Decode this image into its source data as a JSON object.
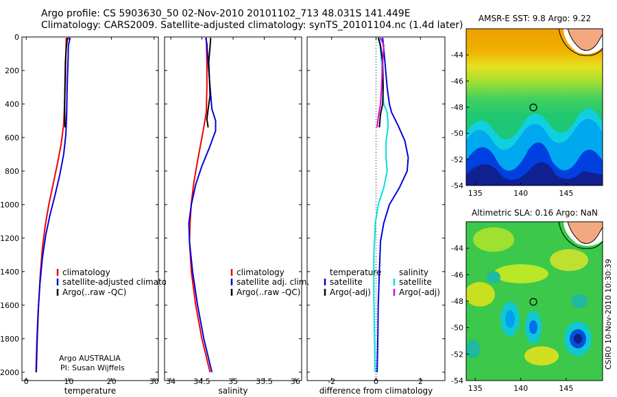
{
  "header": {
    "line1": "Argo profile: CS 5903630_50 02-Nov-2010 20101102_713 48.031S 141.449E",
    "line2": "Climatology: CARS2009. Satellite-adjusted climatology: synTS_20101104.nc (1.4d later)"
  },
  "credits": {
    "org": "Argo AUSTRALIA",
    "pi": "PI: Susan Wijffels"
  },
  "stamp": "CSIRO 10-Nov-2010 10:30:39",
  "chart_data": [
    {
      "type": "line",
      "name": "temperature",
      "xlabel": "temperature",
      "ylabel": "",
      "xlim": [
        -1,
        31
      ],
      "ylim": [
        2050,
        0
      ],
      "xticks": [
        0,
        10,
        20,
        30
      ],
      "yticks": [
        0,
        200,
        400,
        600,
        800,
        1000,
        1200,
        1400,
        1600,
        1800,
        2000
      ],
      "legend": [
        "climatology",
        "satellite-adjusted climatology",
        "Argo(..raw -QC)"
      ],
      "series": [
        {
          "name": "climatology",
          "color": "#ee0000",
          "points": [
            [
              9.4,
              5
            ],
            [
              9.3,
              100
            ],
            [
              9.2,
              250
            ],
            [
              9.0,
              400
            ],
            [
              8.8,
              520
            ],
            [
              8.2,
              640
            ],
            [
              7.3,
              760
            ],
            [
              6.3,
              880
            ],
            [
              5.3,
              1000
            ],
            [
              4.5,
              1120
            ],
            [
              3.8,
              1260
            ],
            [
              3.3,
              1420
            ],
            [
              2.9,
              1600
            ],
            [
              2.6,
              1800
            ],
            [
              2.4,
              2000
            ]
          ]
        },
        {
          "name": "satellite-adjusted climatology",
          "color": "#0000dd",
          "points": [
            [
              10.3,
              5
            ],
            [
              9.9,
              50
            ],
            [
              9.8,
              150
            ],
            [
              9.6,
              300
            ],
            [
              9.5,
              450
            ],
            [
              9.3,
              580
            ],
            [
              8.8,
              700
            ],
            [
              7.9,
              820
            ],
            [
              6.8,
              940
            ],
            [
              5.6,
              1060
            ],
            [
              4.6,
              1180
            ],
            [
              3.8,
              1320
            ],
            [
              3.2,
              1480
            ],
            [
              2.8,
              1640
            ],
            [
              2.5,
              1820
            ],
            [
              2.3,
              2000
            ]
          ]
        },
        {
          "name": "Argo(..raw -QC)",
          "color": "#000000",
          "points": [
            [
              9.7,
              5
            ],
            [
              9.4,
              60
            ],
            [
              9.2,
              150
            ],
            [
              9.1,
              280
            ],
            [
              9.0,
              400
            ],
            [
              9.05,
              480
            ],
            [
              9.1,
              540
            ]
          ]
        }
      ]
    },
    {
      "type": "line",
      "name": "salinity",
      "xlabel": "salinity",
      "ylabel": "",
      "xlim": [
        33.9,
        36.1
      ],
      "ylim": [
        2050,
        0
      ],
      "xticks": [
        34,
        34.5,
        35,
        35.5,
        36
      ],
      "yticks": [
        0,
        200,
        400,
        600,
        800,
        1000,
        1200,
        1400,
        1600,
        1800,
        2000
      ],
      "legend": [
        "climatology",
        "satellite adj. clim.",
        "Argo(..raw -QC)"
      ],
      "series": [
        {
          "name": "climatology",
          "color": "#ee0000",
          "points": [
            [
              34.57,
              5
            ],
            [
              34.58,
              150
            ],
            [
              34.58,
              300
            ],
            [
              34.57,
              450
            ],
            [
              34.52,
              560
            ],
            [
              34.47,
              660
            ],
            [
              34.42,
              760
            ],
            [
              34.37,
              870
            ],
            [
              34.33,
              990
            ],
            [
              34.31,
              1110
            ],
            [
              34.3,
              1220
            ],
            [
              34.33,
              1400
            ],
            [
              34.4,
              1600
            ],
            [
              34.5,
              1800
            ],
            [
              34.63,
              2000
            ]
          ]
        },
        {
          "name": "satellite adj. clim.",
          "color": "#0000dd",
          "points": [
            [
              34.56,
              5
            ],
            [
              34.58,
              40
            ],
            [
              34.6,
              150
            ],
            [
              34.63,
              300
            ],
            [
              34.66,
              430
            ],
            [
              34.72,
              500
            ],
            [
              34.72,
              560
            ],
            [
              34.62,
              660
            ],
            [
              34.5,
              770
            ],
            [
              34.4,
              880
            ],
            [
              34.33,
              1000
            ],
            [
              34.29,
              1110
            ],
            [
              34.3,
              1220
            ],
            [
              34.35,
              1400
            ],
            [
              34.43,
              1600
            ],
            [
              34.53,
              1800
            ],
            [
              34.66,
              2000
            ]
          ]
        },
        {
          "name": "Argo(..raw -QC)",
          "color": "#000000",
          "points": [
            [
              34.64,
              5
            ],
            [
              34.63,
              60
            ],
            [
              34.61,
              150
            ],
            [
              34.62,
              250
            ],
            [
              34.63,
              350
            ],
            [
              34.6,
              430
            ],
            [
              34.58,
              490
            ],
            [
              34.6,
              540
            ]
          ]
        }
      ]
    },
    {
      "type": "line",
      "name": "difference",
      "xlabel": "difference from climatology",
      "ylabel": "",
      "xlim": [
        -3.1,
        3.1
      ],
      "ylim": [
        2050,
        0
      ],
      "xticks": [
        -2,
        0,
        2
      ],
      "yticks": [
        0,
        200,
        400,
        600,
        800,
        1000,
        1200,
        1400,
        1600,
        1800,
        2000
      ],
      "legend_temperature": [
        "temperature",
        "satellite",
        "Argo(-adj)"
      ],
      "legend_salinity": [
        "salinity",
        "satellite",
        "Argo(-adj)"
      ],
      "series": [
        {
          "name": "temperature satellite",
          "color": "#0000dd",
          "points": [
            [
              0.3,
              5
            ],
            [
              0.4,
              150
            ],
            [
              0.5,
              300
            ],
            [
              0.6,
              400
            ],
            [
              0.7,
              450
            ],
            [
              1.0,
              530
            ],
            [
              1.3,
              620
            ],
            [
              1.45,
              720
            ],
            [
              1.4,
              800
            ],
            [
              1.05,
              900
            ],
            [
              0.6,
              1000
            ],
            [
              0.35,
              1110
            ],
            [
              0.2,
              1220
            ],
            [
              0.15,
              1400
            ],
            [
              0.1,
              1600
            ],
            [
              0.08,
              1800
            ],
            [
              0.05,
              2000
            ]
          ]
        },
        {
          "name": "salinity satellite",
          "color": "#00e0e0",
          "points": [
            [
              0.15,
              5
            ],
            [
              0.25,
              150
            ],
            [
              0.3,
              300
            ],
            [
              0.35,
              400
            ],
            [
              0.5,
              450
            ],
            [
              0.55,
              530
            ],
            [
              0.45,
              620
            ],
            [
              0.45,
              720
            ],
            [
              0.5,
              800
            ],
            [
              0.35,
              900
            ],
            [
              0.1,
              1000
            ],
            [
              -0.03,
              1110
            ],
            [
              -0.1,
              1300
            ],
            [
              -0.1,
              1500
            ],
            [
              -0.08,
              1700
            ],
            [
              -0.05,
              2000
            ]
          ]
        },
        {
          "name": "temperature Argo(-adj)",
          "color": "#000000",
          "points": [
            [
              0.1,
              5
            ],
            [
              0.2,
              50
            ],
            [
              0.3,
              150
            ],
            [
              0.32,
              300
            ],
            [
              0.3,
              400
            ],
            [
              0.2,
              460
            ],
            [
              0.15,
              540
            ]
          ]
        },
        {
          "name": "salinity Argo(-adj)",
          "color": "#dd00dd",
          "points": [
            [
              0.2,
              5
            ],
            [
              0.35,
              50
            ],
            [
              0.3,
              150
            ],
            [
              0.25,
              300
            ],
            [
              0.2,
              400
            ],
            [
              0.1,
              480
            ],
            [
              0.05,
              540
            ]
          ]
        }
      ]
    },
    {
      "type": "heatmap",
      "name": "sst_map",
      "title": "AMSR-E SST: 9.8 Argo: 9.22",
      "xlim": [
        134,
        149
      ],
      "ylim": [
        -54,
        -42
      ],
      "xticks": [
        135,
        140,
        145
      ],
      "yticks": [
        -44,
        -46,
        -48,
        -50,
        -52,
        -54
      ],
      "marker": [
        141.449,
        -48.031
      ]
    },
    {
      "type": "heatmap",
      "name": "sla_map",
      "title": "Altimetric SLA: 0.16 Argo: NaN",
      "xlim": [
        134,
        149
      ],
      "ylim": [
        -54,
        -42
      ],
      "xticks": [
        135,
        140,
        145
      ],
      "yticks": [
        -44,
        -46,
        -48,
        -50,
        -52,
        -54
      ],
      "marker": [
        141.449,
        -48.031
      ]
    }
  ]
}
